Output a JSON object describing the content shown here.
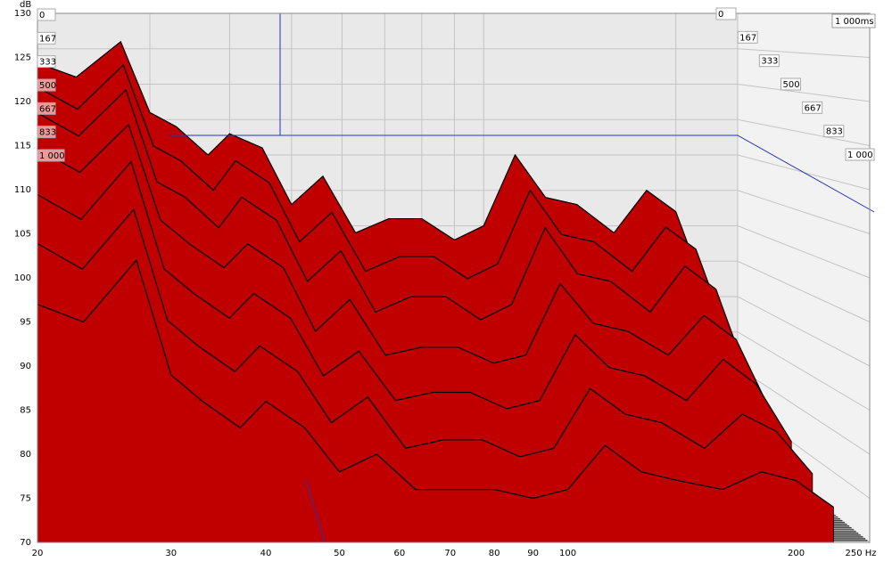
{
  "chart_data": {
    "type": "waterfall",
    "y_label": "dB",
    "z_label": "1 000ms",
    "x": [
      20,
      23,
      27,
      30,
      33,
      37,
      40,
      45,
      50,
      56,
      63,
      71,
      80,
      90,
      100,
      112,
      125,
      140,
      160,
      180,
      200,
      224
    ],
    "series": [
      {
        "name": "0",
        "color": "#c00000",
        "values": [
          123,
          121,
          126,
          116,
          114,
          110,
          113,
          111,
          103,
          107,
          99,
          101,
          101,
          98,
          100,
          110,
          104,
          103,
          99,
          105,
          102,
          90
        ]
      },
      {
        "name": "167",
        "color": "#c00000",
        "values": [
          120,
          117,
          123,
          112,
          110,
          106,
          110,
          107,
          99,
          103,
          95,
          97,
          97,
          94,
          96,
          106,
          100,
          99,
          95,
          101,
          98,
          86
        ]
      },
      {
        "name": "333",
        "color": "#c00000",
        "values": [
          117,
          114,
          120,
          108,
          106,
          102,
          106,
          103,
          95,
          99,
          91,
          93,
          93,
          90,
          92,
          102,
          96,
          95,
          91,
          97,
          94,
          82
        ]
      },
      {
        "name": "500",
        "color": "#c00000",
        "values": [
          113,
          110,
          116,
          104,
          101,
          98,
          101,
          98,
          90,
          94,
          87,
          88,
          88,
          86,
          87,
          96,
          91,
          90,
          87,
          92,
          89,
          80
        ]
      },
      {
        "name": "667",
        "color": "#c00000",
        "values": [
          108,
          105,
          112,
          99,
          96,
          93,
          96,
          93,
          86,
          89,
          83,
          84,
          84,
          82,
          83,
          91,
          87,
          86,
          83,
          88,
          85,
          78
        ]
      },
      {
        "name": "833",
        "color": "#c00000",
        "values": [
          103,
          100,
          107,
          94,
          91,
          88,
          91,
          88,
          82,
          85,
          79,
          80,
          80,
          78,
          79,
          86,
          83,
          82,
          79,
          83,
          81,
          76
        ]
      },
      {
        "name": "1 000",
        "color": "#c00000",
        "values": [
          97,
          95,
          102,
          89,
          86,
          83,
          86,
          83,
          78,
          80,
          76,
          76,
          76,
          75,
          76,
          81,
          78,
          77,
          76,
          78,
          77,
          74
        ]
      }
    ],
    "xlim": [
      20,
      250
    ],
    "log_x": true,
    "xticks": [
      20,
      30,
      40,
      50,
      60,
      70,
      80,
      90,
      100,
      200,
      {
        "value": 250,
        "label": "250 Hz"
      }
    ],
    "ylim": [
      70,
      130
    ],
    "yticks": [
      70,
      75,
      80,
      85,
      90,
      95,
      100,
      105,
      110,
      115,
      120,
      125,
      130
    ],
    "grid": true
  }
}
